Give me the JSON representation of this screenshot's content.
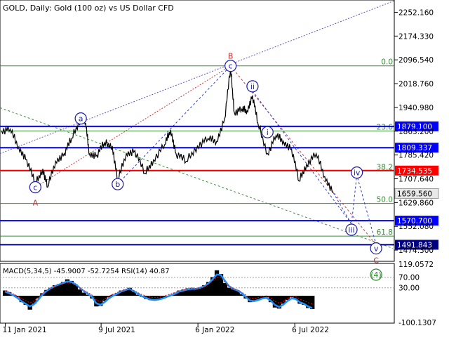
{
  "header": {
    "symbol_line": "GOLD, Daily:  Gold (100 oz) vs US Dollar CFD"
  },
  "indicator": {
    "label": "MACD(5,34,5) -45.9007 -52.7254 RSI(14) 40.87",
    "axis_labels": [
      "119.0572",
      "70.00",
      "30.00",
      "-100.1307"
    ]
  },
  "chart_data": [
    {
      "type": "line",
      "title": "GOLD, Daily:  Gold (100 oz) vs US Dollar CFD",
      "y_tick_labels": [
        "2252.160",
        "2174.330",
        "2096.540",
        "2018.760",
        "1940.980",
        "1863.200",
        "1785.420",
        "1707.640",
        "1629.860",
        "1552.080",
        "1474.300"
      ],
      "x_tick_labels": [
        "11 Jan 2021",
        "9 Jul 2021",
        "6 Jan 2022",
        "6 Jul 2022"
      ],
      "ylim": [
        1440,
        2290
      ],
      "current_price": "1659.560",
      "price_series": [
        {
          "date": "2021-01-04",
          "close": 1865
        },
        {
          "date": "2021-01-20",
          "close": 1870
        },
        {
          "date": "2021-02-05",
          "close": 1810
        },
        {
          "date": "2021-02-20",
          "close": 1770
        },
        {
          "date": "2021-03-08",
          "close": 1690
        },
        {
          "date": "2021-03-22",
          "close": 1740
        },
        {
          "date": "2021-03-31",
          "close": 1680
        },
        {
          "date": "2021-04-15",
          "close": 1765
        },
        {
          "date": "2021-05-01",
          "close": 1790
        },
        {
          "date": "2021-05-15",
          "close": 1840
        },
        {
          "date": "2021-06-01",
          "close": 1905
        },
        {
          "date": "2021-06-10",
          "close": 1890
        },
        {
          "date": "2021-06-17",
          "close": 1790
        },
        {
          "date": "2021-07-01",
          "close": 1785
        },
        {
          "date": "2021-07-15",
          "close": 1825
        },
        {
          "date": "2021-07-30",
          "close": 1815
        },
        {
          "date": "2021-08-09",
          "close": 1700
        },
        {
          "date": "2021-08-25",
          "close": 1790
        },
        {
          "date": "2021-09-10",
          "close": 1800
        },
        {
          "date": "2021-09-29",
          "close": 1725
        },
        {
          "date": "2021-10-15",
          "close": 1770
        },
        {
          "date": "2021-11-05",
          "close": 1820
        },
        {
          "date": "2021-11-16",
          "close": 1868
        },
        {
          "date": "2021-11-26",
          "close": 1790
        },
        {
          "date": "2021-12-15",
          "close": 1765
        },
        {
          "date": "2022-01-05",
          "close": 1815
        },
        {
          "date": "2022-01-25",
          "close": 1840
        },
        {
          "date": "2022-02-10",
          "close": 1830
        },
        {
          "date": "2022-02-25",
          "close": 1905
        },
        {
          "date": "2022-03-08",
          "close": 2070
        },
        {
          "date": "2022-03-15",
          "close": 1925
        },
        {
          "date": "2022-03-29",
          "close": 1935
        },
        {
          "date": "2022-04-08",
          "close": 1930
        },
        {
          "date": "2022-04-18",
          "close": 1980
        },
        {
          "date": "2022-04-28",
          "close": 1890
        },
        {
          "date": "2022-05-16",
          "close": 1790
        },
        {
          "date": "2022-06-01",
          "close": 1850
        },
        {
          "date": "2022-06-15",
          "close": 1830
        },
        {
          "date": "2022-06-30",
          "close": 1805
        },
        {
          "date": "2022-07-14",
          "close": 1700
        },
        {
          "date": "2022-07-28",
          "close": 1755
        },
        {
          "date": "2022-08-15",
          "close": 1790
        },
        {
          "date": "2022-08-31",
          "close": 1715
        },
        {
          "date": "2022-09-16",
          "close": 1662
        }
      ],
      "horizontal_levels": [
        {
          "label": "1879.100",
          "value": 1879.1,
          "color": "#0000ff"
        },
        {
          "label": "1809.337",
          "value": 1809.337,
          "color": "#0000ff"
        },
        {
          "label": "1734.535",
          "value": 1734.535,
          "color": "#ff0000"
        },
        {
          "label": "1570.700",
          "value": 1570.7,
          "color": "#0000ff"
        },
        {
          "label": "1491.843",
          "value": 1491.843,
          "color": "#000080"
        }
      ],
      "fibonacci_levels": [
        {
          "label": "0.0",
          "value": 2077
        },
        {
          "label": "23.6",
          "value": 1864
        },
        {
          "label": "38.2",
          "value": 1733
        },
        {
          "label": "50.0",
          "value": 1627
        },
        {
          "label": "61.8",
          "value": 1520
        }
      ],
      "wave_labels": [
        {
          "text": "B",
          "color": "#c03030",
          "date": "2022-03-08",
          "price": 2077
        },
        {
          "text": "c",
          "color": "#1a1aa8",
          "date": "2022-03-08",
          "price": 2077
        },
        {
          "text": "A",
          "color": "#c03030",
          "date": "2021-03-08",
          "price": 1680
        },
        {
          "text": "c",
          "color": "#1a1aa8",
          "date": "2021-03-08",
          "price": 1680
        },
        {
          "text": "a",
          "color": "#1a1aa8",
          "date": "2021-06-01",
          "price": 1905
        },
        {
          "text": "b",
          "color": "#1a1aa8",
          "date": "2021-08-09",
          "price": 1690
        },
        {
          "text": "i",
          "color": "#1a1aa8",
          "date": "2022-05-16",
          "price": 1860
        },
        {
          "text": "ii",
          "color": "#1a1aa8",
          "date": "2022-04-18",
          "price": 2010
        },
        {
          "text": "iii",
          "color": "#1a1aa8",
          "date": "2022-10-20",
          "price": 1541
        },
        {
          "text": "iv",
          "color": "#1a1aa8",
          "date": "2022-10-30",
          "price": 1728
        },
        {
          "text": "v",
          "color": "#1a1aa8",
          "date": "2022-12-05",
          "price": 1480
        },
        {
          "text": "C",
          "color": "#c03030",
          "date": "2022-12-05",
          "price": 1460
        },
        {
          "text": "(4)",
          "color": "#2a8a2a",
          "date": "2022-12-05",
          "price": 1440
        }
      ],
      "projection": [
        {
          "date": "2022-09-16",
          "price": 1662
        },
        {
          "date": "2022-10-20",
          "price": 1560
        },
        {
          "date": "2022-10-30",
          "price": 1720
        },
        {
          "date": "2022-12-05",
          "price": 1492
        }
      ]
    },
    {
      "type": "bar",
      "title": "MACD(5,34,5) -45.9007 -52.7254 RSI(14) 40.87",
      "ylim": [
        -100.1307,
        119.0572
      ],
      "histogram": [
        20,
        14,
        4,
        -6,
        -24,
        -34,
        -52,
        -30,
        -10,
        10,
        22,
        30,
        40,
        44,
        52,
        62,
        56,
        42,
        24,
        12,
        4,
        -10,
        -40,
        -38,
        -20,
        -6,
        4,
        10,
        20,
        24,
        30,
        16,
        4,
        -4,
        -12,
        -16,
        -18,
        -14,
        -8,
        -2,
        4,
        12,
        20,
        24,
        28,
        30,
        28,
        32,
        40,
        52,
        70,
        96,
        82,
        48,
        30,
        24,
        20,
        6,
        -10,
        -24,
        -20,
        -14,
        -8,
        -6,
        -24,
        -44,
        -48,
        -30,
        -16,
        -6,
        -14,
        -30,
        -34,
        -46,
        -50
      ],
      "signal_values": [
        16,
        10,
        2,
        -8,
        -20,
        -30,
        -40,
        -32,
        -16,
        4,
        18,
        28,
        36,
        42,
        48,
        54,
        52,
        44,
        30,
        18,
        8,
        -4,
        -28,
        -34,
        -24,
        -10,
        0,
        8,
        16,
        22,
        26,
        18,
        8,
        -2,
        -8,
        -14,
        -16,
        -14,
        -10,
        -4,
        2,
        8,
        16,
        20,
        24,
        26,
        26,
        30,
        36,
        46,
        62,
        80,
        78,
        56,
        36,
        26,
        20,
        10,
        -4,
        -18,
        -20,
        -16,
        -10,
        -8,
        -18,
        -34,
        -42,
        -34,
        -20,
        -10,
        -12,
        -24,
        -30,
        -40,
        -46
      ]
    }
  ]
}
